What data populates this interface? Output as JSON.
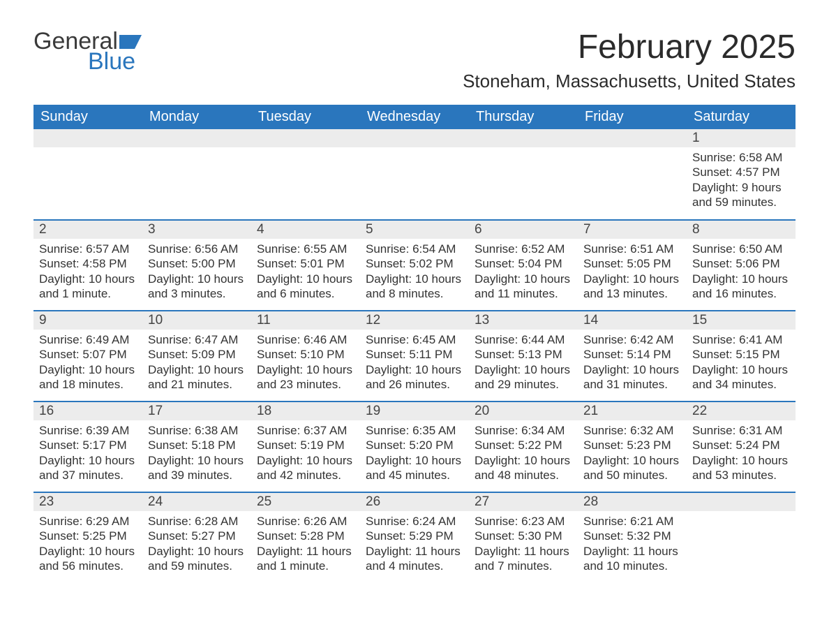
{
  "brand": {
    "word1": "General",
    "word2": "Blue"
  },
  "title": "February 2025",
  "location": "Stoneham, Massachusetts, United States",
  "weekdays": [
    "Sunday",
    "Monday",
    "Tuesday",
    "Wednesday",
    "Thursday",
    "Friday",
    "Saturday"
  ],
  "colors": {
    "brand_blue": "#2a76bd",
    "header_blue": "#2a76bd",
    "light_gray": "#ececec",
    "text": "#333333"
  },
  "weeks": [
    [
      {
        "day": "",
        "sunrise": "",
        "sunset": "",
        "daylight": ""
      },
      {
        "day": "",
        "sunrise": "",
        "sunset": "",
        "daylight": ""
      },
      {
        "day": "",
        "sunrise": "",
        "sunset": "",
        "daylight": ""
      },
      {
        "day": "",
        "sunrise": "",
        "sunset": "",
        "daylight": ""
      },
      {
        "day": "",
        "sunrise": "",
        "sunset": "",
        "daylight": ""
      },
      {
        "day": "",
        "sunrise": "",
        "sunset": "",
        "daylight": ""
      },
      {
        "day": "1",
        "sunrise": "Sunrise: 6:58 AM",
        "sunset": "Sunset: 4:57 PM",
        "daylight": "Daylight: 9 hours and 59 minutes."
      }
    ],
    [
      {
        "day": "2",
        "sunrise": "Sunrise: 6:57 AM",
        "sunset": "Sunset: 4:58 PM",
        "daylight": "Daylight: 10 hours and 1 minute."
      },
      {
        "day": "3",
        "sunrise": "Sunrise: 6:56 AM",
        "sunset": "Sunset: 5:00 PM",
        "daylight": "Daylight: 10 hours and 3 minutes."
      },
      {
        "day": "4",
        "sunrise": "Sunrise: 6:55 AM",
        "sunset": "Sunset: 5:01 PM",
        "daylight": "Daylight: 10 hours and 6 minutes."
      },
      {
        "day": "5",
        "sunrise": "Sunrise: 6:54 AM",
        "sunset": "Sunset: 5:02 PM",
        "daylight": "Daylight: 10 hours and 8 minutes."
      },
      {
        "day": "6",
        "sunrise": "Sunrise: 6:52 AM",
        "sunset": "Sunset: 5:04 PM",
        "daylight": "Daylight: 10 hours and 11 minutes."
      },
      {
        "day": "7",
        "sunrise": "Sunrise: 6:51 AM",
        "sunset": "Sunset: 5:05 PM",
        "daylight": "Daylight: 10 hours and 13 minutes."
      },
      {
        "day": "8",
        "sunrise": "Sunrise: 6:50 AM",
        "sunset": "Sunset: 5:06 PM",
        "daylight": "Daylight: 10 hours and 16 minutes."
      }
    ],
    [
      {
        "day": "9",
        "sunrise": "Sunrise: 6:49 AM",
        "sunset": "Sunset: 5:07 PM",
        "daylight": "Daylight: 10 hours and 18 minutes."
      },
      {
        "day": "10",
        "sunrise": "Sunrise: 6:47 AM",
        "sunset": "Sunset: 5:09 PM",
        "daylight": "Daylight: 10 hours and 21 minutes."
      },
      {
        "day": "11",
        "sunrise": "Sunrise: 6:46 AM",
        "sunset": "Sunset: 5:10 PM",
        "daylight": "Daylight: 10 hours and 23 minutes."
      },
      {
        "day": "12",
        "sunrise": "Sunrise: 6:45 AM",
        "sunset": "Sunset: 5:11 PM",
        "daylight": "Daylight: 10 hours and 26 minutes."
      },
      {
        "day": "13",
        "sunrise": "Sunrise: 6:44 AM",
        "sunset": "Sunset: 5:13 PM",
        "daylight": "Daylight: 10 hours and 29 minutes."
      },
      {
        "day": "14",
        "sunrise": "Sunrise: 6:42 AM",
        "sunset": "Sunset: 5:14 PM",
        "daylight": "Daylight: 10 hours and 31 minutes."
      },
      {
        "day": "15",
        "sunrise": "Sunrise: 6:41 AM",
        "sunset": "Sunset: 5:15 PM",
        "daylight": "Daylight: 10 hours and 34 minutes."
      }
    ],
    [
      {
        "day": "16",
        "sunrise": "Sunrise: 6:39 AM",
        "sunset": "Sunset: 5:17 PM",
        "daylight": "Daylight: 10 hours and 37 minutes."
      },
      {
        "day": "17",
        "sunrise": "Sunrise: 6:38 AM",
        "sunset": "Sunset: 5:18 PM",
        "daylight": "Daylight: 10 hours and 39 minutes."
      },
      {
        "day": "18",
        "sunrise": "Sunrise: 6:37 AM",
        "sunset": "Sunset: 5:19 PM",
        "daylight": "Daylight: 10 hours and 42 minutes."
      },
      {
        "day": "19",
        "sunrise": "Sunrise: 6:35 AM",
        "sunset": "Sunset: 5:20 PM",
        "daylight": "Daylight: 10 hours and 45 minutes."
      },
      {
        "day": "20",
        "sunrise": "Sunrise: 6:34 AM",
        "sunset": "Sunset: 5:22 PM",
        "daylight": "Daylight: 10 hours and 48 minutes."
      },
      {
        "day": "21",
        "sunrise": "Sunrise: 6:32 AM",
        "sunset": "Sunset: 5:23 PM",
        "daylight": "Daylight: 10 hours and 50 minutes."
      },
      {
        "day": "22",
        "sunrise": "Sunrise: 6:31 AM",
        "sunset": "Sunset: 5:24 PM",
        "daylight": "Daylight: 10 hours and 53 minutes."
      }
    ],
    [
      {
        "day": "23",
        "sunrise": "Sunrise: 6:29 AM",
        "sunset": "Sunset: 5:25 PM",
        "daylight": "Daylight: 10 hours and 56 minutes."
      },
      {
        "day": "24",
        "sunrise": "Sunrise: 6:28 AM",
        "sunset": "Sunset: 5:27 PM",
        "daylight": "Daylight: 10 hours and 59 minutes."
      },
      {
        "day": "25",
        "sunrise": "Sunrise: 6:26 AM",
        "sunset": "Sunset: 5:28 PM",
        "daylight": "Daylight: 11 hours and 1 minute."
      },
      {
        "day": "26",
        "sunrise": "Sunrise: 6:24 AM",
        "sunset": "Sunset: 5:29 PM",
        "daylight": "Daylight: 11 hours and 4 minutes."
      },
      {
        "day": "27",
        "sunrise": "Sunrise: 6:23 AM",
        "sunset": "Sunset: 5:30 PM",
        "daylight": "Daylight: 11 hours and 7 minutes."
      },
      {
        "day": "28",
        "sunrise": "Sunrise: 6:21 AM",
        "sunset": "Sunset: 5:32 PM",
        "daylight": "Daylight: 11 hours and 10 minutes."
      },
      {
        "day": "",
        "sunrise": "",
        "sunset": "",
        "daylight": ""
      }
    ]
  ]
}
